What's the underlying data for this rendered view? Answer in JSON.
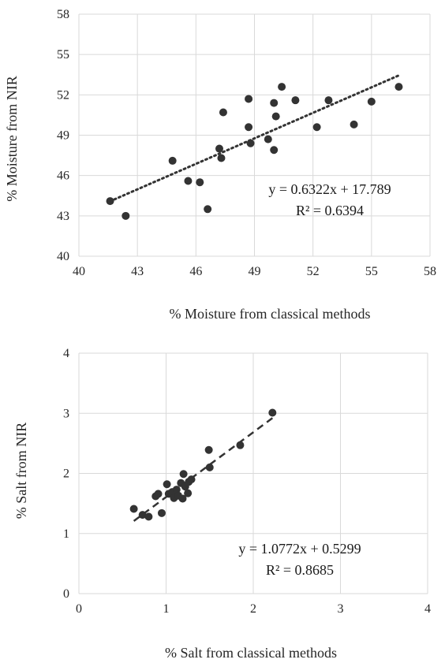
{
  "chart_data": [
    {
      "type": "scatter",
      "xlabel": "% Moisture from classical methods",
      "ylabel": "% Moisture from NIR",
      "xlim": [
        40,
        58
      ],
      "ylim": [
        40,
        58
      ],
      "xticks": [
        40,
        43,
        46,
        49,
        52,
        55,
        58
      ],
      "yticks": [
        40,
        43,
        46,
        49,
        52,
        55,
        58
      ],
      "grid": true,
      "trendline": {
        "style": "dotted",
        "slope": 0.6322,
        "intercept": 17.789,
        "x_range": [
          41.6,
          56.4
        ]
      },
      "equation": "y = 0.6322x + 17.789",
      "r2": "R² = 0.6394",
      "points": [
        {
          "x": 41.6,
          "y": 44.1
        },
        {
          "x": 42.4,
          "y": 43.0
        },
        {
          "x": 44.8,
          "y": 47.1
        },
        {
          "x": 45.6,
          "y": 45.6
        },
        {
          "x": 46.2,
          "y": 45.5
        },
        {
          "x": 46.6,
          "y": 43.5
        },
        {
          "x": 47.2,
          "y": 48.0
        },
        {
          "x": 47.3,
          "y": 47.3
        },
        {
          "x": 47.4,
          "y": 50.7
        },
        {
          "x": 48.7,
          "y": 51.7
        },
        {
          "x": 48.7,
          "y": 49.6
        },
        {
          "x": 48.8,
          "y": 48.4
        },
        {
          "x": 49.7,
          "y": 48.7
        },
        {
          "x": 50.0,
          "y": 47.9
        },
        {
          "x": 50.0,
          "y": 51.4
        },
        {
          "x": 50.1,
          "y": 50.4
        },
        {
          "x": 50.4,
          "y": 52.6
        },
        {
          "x": 51.1,
          "y": 51.6
        },
        {
          "x": 52.2,
          "y": 49.6
        },
        {
          "x": 52.8,
          "y": 51.6
        },
        {
          "x": 54.1,
          "y": 49.8
        },
        {
          "x": 55.0,
          "y": 51.5
        },
        {
          "x": 56.4,
          "y": 52.6
        }
      ]
    },
    {
      "type": "scatter",
      "xlabel": "% Salt from classical methods",
      "ylabel": "% Salt from NIR",
      "xlim": [
        0,
        4
      ],
      "ylim": [
        0,
        4
      ],
      "xticks": [
        0,
        1,
        2,
        3,
        4
      ],
      "yticks": [
        0,
        1,
        2,
        3,
        4
      ],
      "grid": true,
      "trendline": {
        "style": "dashed",
        "slope": 1.0772,
        "intercept": 0.5299,
        "x_range": [
          0.63,
          2.22
        ]
      },
      "equation": "y = 1.0772x + 0.5299",
      "r2": "R² = 0.8685",
      "points": [
        {
          "x": 0.63,
          "y": 1.41
        },
        {
          "x": 0.73,
          "y": 1.31
        },
        {
          "x": 0.8,
          "y": 1.28
        },
        {
          "x": 0.88,
          "y": 1.62
        },
        {
          "x": 0.91,
          "y": 1.66
        },
        {
          "x": 0.95,
          "y": 1.34
        },
        {
          "x": 1.01,
          "y": 1.82
        },
        {
          "x": 1.03,
          "y": 1.66
        },
        {
          "x": 1.07,
          "y": 1.69
        },
        {
          "x": 1.09,
          "y": 1.59
        },
        {
          "x": 1.12,
          "y": 1.73
        },
        {
          "x": 1.14,
          "y": 1.63
        },
        {
          "x": 1.17,
          "y": 1.84
        },
        {
          "x": 1.19,
          "y": 1.58
        },
        {
          "x": 1.2,
          "y": 1.99
        },
        {
          "x": 1.22,
          "y": 1.78
        },
        {
          "x": 1.25,
          "y": 1.67
        },
        {
          "x": 1.26,
          "y": 1.86
        },
        {
          "x": 1.29,
          "y": 1.9
        },
        {
          "x": 1.49,
          "y": 2.39
        },
        {
          "x": 1.5,
          "y": 2.1
        },
        {
          "x": 1.85,
          "y": 2.47
        },
        {
          "x": 2.22,
          "y": 3.01
        }
      ]
    }
  ]
}
